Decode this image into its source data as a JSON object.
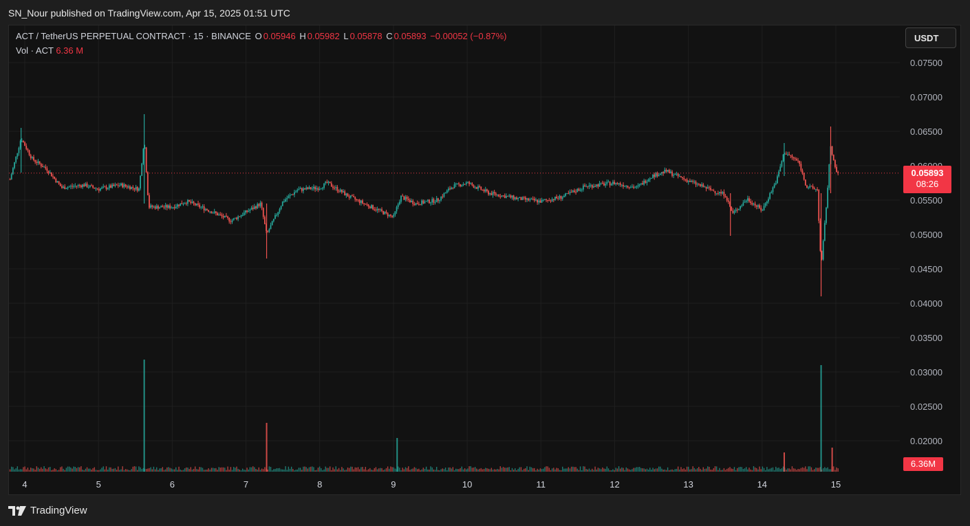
{
  "header": {
    "published_text": "SN_Nour published on TradingView.com, Apr 15, 2025 01:51 UTC"
  },
  "legend": {
    "symbol": "ACT / TetherUS PERPETUAL CONTRACT · 15 · BINANCE",
    "o_label": "O",
    "o_value": "0.05946",
    "h_label": "H",
    "h_value": "0.05982",
    "l_label": "L",
    "l_value": "0.05878",
    "c_label": "C",
    "c_value": "0.05893",
    "change": "−0.00052 (−0.87%)"
  },
  "volume_legend": {
    "label": "Vol · ACT",
    "value": "6.36 M"
  },
  "currency_button": "USDT",
  "price_tag": {
    "price": "0.05893",
    "countdown": "08:26"
  },
  "volume_tag": "6.36M",
  "footer": {
    "brand": "TradingView"
  },
  "colors": {
    "up": "#26a69a",
    "down": "#ef5350",
    "accent": "#f23645",
    "background": "#121212"
  },
  "chart_data": {
    "type": "candlestick",
    "y_ticks": [
      "0.07500",
      "0.07000",
      "0.06500",
      "0.06000",
      "0.05500",
      "0.05000",
      "0.04500",
      "0.04000",
      "0.03500",
      "0.03000",
      "0.02500",
      "0.02000"
    ],
    "ylim": [
      0.016,
      0.0795
    ],
    "x_ticks": [
      "4",
      "5",
      "6",
      "7",
      "8",
      "9",
      "10",
      "11",
      "12",
      "13",
      "14",
      "15"
    ],
    "last_price": 0.05893,
    "approx_close_path": [
      {
        "x": 3.8,
        "y": 0.058
      },
      {
        "x": 3.95,
        "y": 0.064
      },
      {
        "x": 4.1,
        "y": 0.061
      },
      {
        "x": 4.3,
        "y": 0.0595
      },
      {
        "x": 4.5,
        "y": 0.0568
      },
      {
        "x": 4.8,
        "y": 0.0572
      },
      {
        "x": 5.0,
        "y": 0.0566
      },
      {
        "x": 5.3,
        "y": 0.0572
      },
      {
        "x": 5.55,
        "y": 0.0566
      },
      {
        "x": 5.62,
        "y": 0.064
      },
      {
        "x": 5.68,
        "y": 0.054
      },
      {
        "x": 6.0,
        "y": 0.054
      },
      {
        "x": 6.2,
        "y": 0.0548
      },
      {
        "x": 6.5,
        "y": 0.0535
      },
      {
        "x": 6.8,
        "y": 0.052
      },
      {
        "x": 7.2,
        "y": 0.0545
      },
      {
        "x": 7.28,
        "y": 0.05
      },
      {
        "x": 7.5,
        "y": 0.0548
      },
      {
        "x": 7.7,
        "y": 0.0565
      },
      {
        "x": 8.0,
        "y": 0.0568
      },
      {
        "x": 8.1,
        "y": 0.0575
      },
      {
        "x": 8.4,
        "y": 0.0555
      },
      {
        "x": 8.7,
        "y": 0.054
      },
      {
        "x": 9.0,
        "y": 0.0525
      },
      {
        "x": 9.1,
        "y": 0.0555
      },
      {
        "x": 9.3,
        "y": 0.0545
      },
      {
        "x": 9.6,
        "y": 0.055
      },
      {
        "x": 9.8,
        "y": 0.057
      },
      {
        "x": 10.0,
        "y": 0.0575
      },
      {
        "x": 10.3,
        "y": 0.056
      },
      {
        "x": 10.7,
        "y": 0.0552
      },
      {
        "x": 11.0,
        "y": 0.0548
      },
      {
        "x": 11.3,
        "y": 0.0555
      },
      {
        "x": 11.6,
        "y": 0.057
      },
      {
        "x": 12.0,
        "y": 0.0575
      },
      {
        "x": 12.3,
        "y": 0.0568
      },
      {
        "x": 12.5,
        "y": 0.0585
      },
      {
        "x": 12.7,
        "y": 0.0592
      },
      {
        "x": 13.0,
        "y": 0.0578
      },
      {
        "x": 13.3,
        "y": 0.0565
      },
      {
        "x": 13.5,
        "y": 0.0558
      },
      {
        "x": 13.6,
        "y": 0.053
      },
      {
        "x": 13.8,
        "y": 0.0552
      },
      {
        "x": 14.0,
        "y": 0.0535
      },
      {
        "x": 14.2,
        "y": 0.058
      },
      {
        "x": 14.3,
        "y": 0.062
      },
      {
        "x": 14.5,
        "y": 0.0605
      },
      {
        "x": 14.6,
        "y": 0.057
      },
      {
        "x": 14.75,
        "y": 0.0565
      },
      {
        "x": 14.8,
        "y": 0.045
      },
      {
        "x": 14.88,
        "y": 0.0555
      },
      {
        "x": 14.93,
        "y": 0.063
      },
      {
        "x": 15.0,
        "y": 0.059
      },
      {
        "x": 15.05,
        "y": 0.05893
      }
    ],
    "volume_spikes": [
      {
        "x": 5.62,
        "value": 0.0318
      },
      {
        "x": 7.28,
        "value": 0.0226
      },
      {
        "x": 9.05,
        "value": 0.0204
      },
      {
        "x": 14.3,
        "value": 0.0183
      },
      {
        "x": 14.8,
        "value": 0.031
      },
      {
        "x": 14.95,
        "value": 0.019
      }
    ]
  }
}
